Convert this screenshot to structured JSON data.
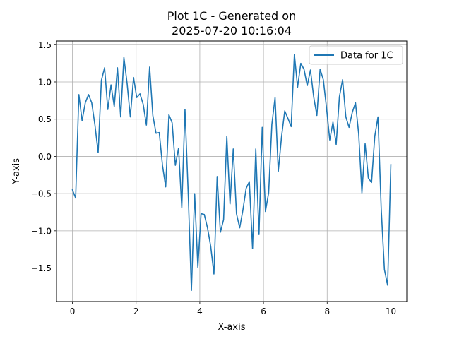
{
  "chart_data": {
    "type": "line",
    "title_line1": "Plot 1C - Generated on",
    "title_line2": "2025-07-20 10:16:04",
    "xlabel": "X-axis",
    "ylabel": "Y-axis",
    "xlim": [
      -0.5,
      10.5
    ],
    "ylim": [
      -1.95,
      1.55
    ],
    "xticks": [
      0,
      2,
      4,
      6,
      8,
      10
    ],
    "yticks": [
      -1.5,
      -1.0,
      -0.5,
      0.0,
      0.5,
      1.0,
      1.5
    ],
    "xtick_labels": [
      "0",
      "2",
      "4",
      "6",
      "8",
      "10"
    ],
    "ytick_labels": [
      "−1.5",
      "−1.0",
      "−0.5",
      "0.0",
      "0.5",
      "1.0",
      "1.5"
    ],
    "grid": true,
    "legend_position": "top-right",
    "series": [
      {
        "name": "Data for 1C",
        "color": "#1f77b4",
        "x": [
          0.0,
          0.101,
          0.202,
          0.303,
          0.404,
          0.505,
          0.606,
          0.707,
          0.808,
          0.909,
          1.01,
          1.111,
          1.212,
          1.313,
          1.414,
          1.515,
          1.616,
          1.717,
          1.818,
          1.919,
          2.02,
          2.121,
          2.222,
          2.323,
          2.424,
          2.525,
          2.626,
          2.727,
          2.828,
          2.929,
          3.03,
          3.131,
          3.232,
          3.333,
          3.434,
          3.535,
          3.636,
          3.737,
          3.838,
          3.939,
          4.04,
          4.141,
          4.242,
          4.343,
          4.444,
          4.545,
          4.646,
          4.747,
          4.848,
          4.949,
          5.051,
          5.152,
          5.253,
          5.354,
          5.455,
          5.556,
          5.657,
          5.758,
          5.859,
          5.96,
          6.061,
          6.162,
          6.263,
          6.364,
          6.465,
          6.566,
          6.667,
          6.768,
          6.869,
          6.97,
          7.071,
          7.172,
          7.273,
          7.374,
          7.475,
          7.576,
          7.677,
          7.778,
          7.879,
          7.98,
          8.081,
          8.182,
          8.283,
          8.384,
          8.485,
          8.586,
          8.687,
          8.788,
          8.889,
          8.99,
          9.091,
          9.192,
          9.293,
          9.394,
          9.495,
          9.596,
          9.697,
          9.798,
          9.899,
          10.0
        ],
        "y": [
          -0.45,
          -0.56,
          0.83,
          0.48,
          0.72,
          0.83,
          0.72,
          0.42,
          0.05,
          1.02,
          1.19,
          0.63,
          0.96,
          0.67,
          1.19,
          0.53,
          1.33,
          0.98,
          0.53,
          1.06,
          0.79,
          0.84,
          0.7,
          0.42,
          1.2,
          0.55,
          0.31,
          0.32,
          -0.12,
          -0.41,
          0.56,
          0.45,
          -0.12,
          0.11,
          -0.69,
          0.63,
          -0.5,
          -1.8,
          -0.5,
          -1.49,
          -0.77,
          -0.78,
          -0.96,
          -1.21,
          -1.58,
          -0.27,
          -1.02,
          -0.85,
          0.27,
          -0.64,
          0.1,
          -0.77,
          -0.96,
          -0.72,
          -0.43,
          -0.34,
          -1.24,
          0.1,
          -1.05,
          0.39,
          -0.74,
          -0.49,
          0.43,
          0.79,
          -0.2,
          0.26,
          0.61,
          0.51,
          0.4,
          1.37,
          0.93,
          1.25,
          1.17,
          0.95,
          1.16,
          0.8,
          0.55,
          1.17,
          1.03,
          0.65,
          0.22,
          0.46,
          0.16,
          0.8,
          1.03,
          0.53,
          0.39,
          0.59,
          0.72,
          0.3,
          -0.49,
          0.17,
          -0.29,
          -0.35,
          0.27,
          0.53,
          -0.7,
          -1.52,
          -1.73,
          -0.11
        ]
      }
    ]
  }
}
